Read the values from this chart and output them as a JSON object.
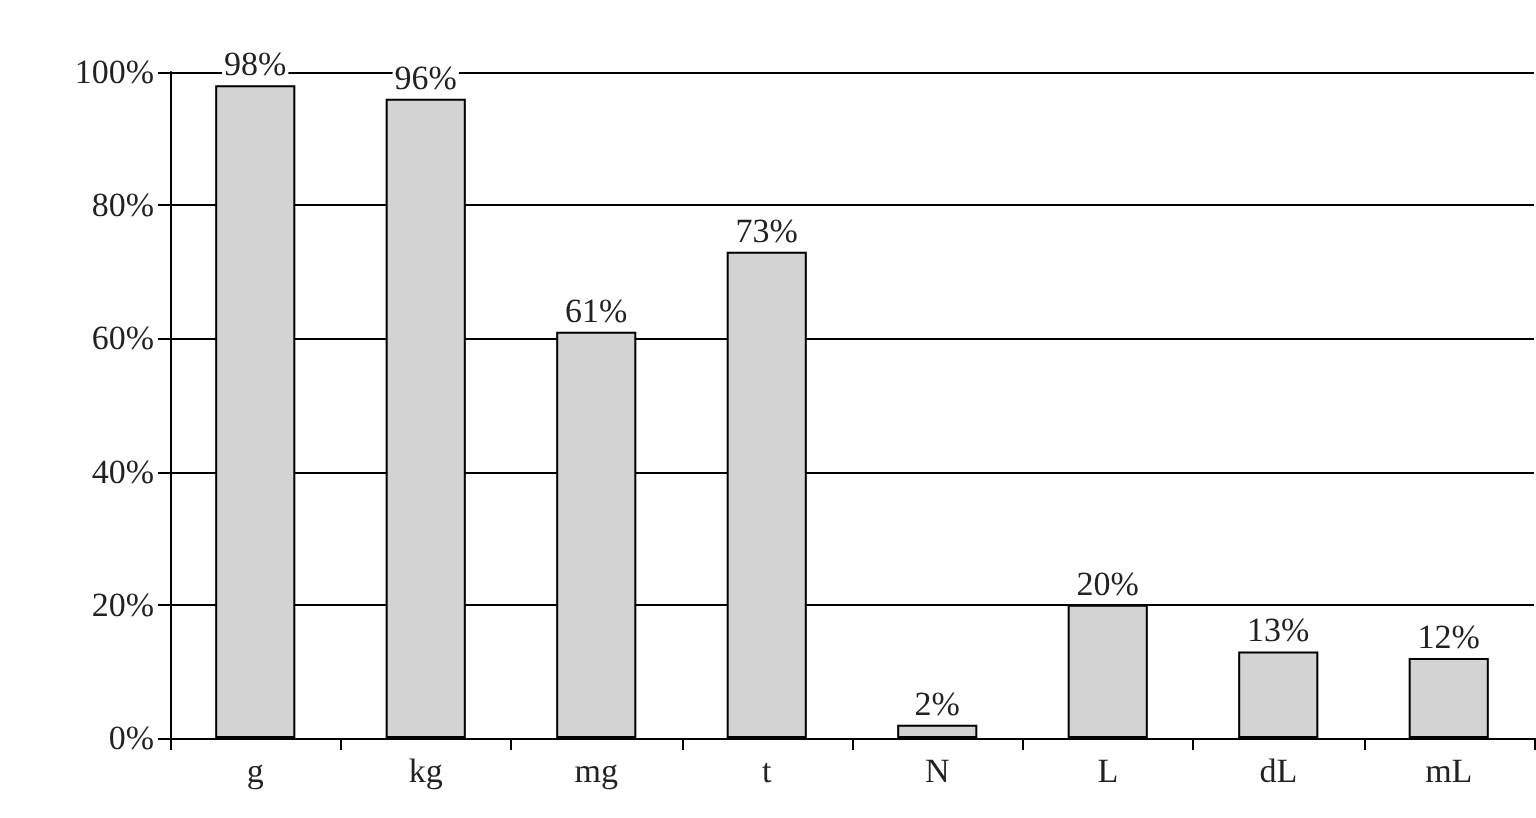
{
  "chart_data": {
    "type": "bar",
    "categories": [
      "g",
      "kg",
      "mg",
      "t",
      "N",
      "L",
      "dL",
      "mL"
    ],
    "values": [
      98,
      96,
      61,
      73,
      2,
      20,
      13,
      12
    ],
    "value_labels": [
      "98%",
      "96%",
      "61%",
      "73%",
      "2%",
      "20%",
      "13%",
      "12%"
    ],
    "color": "#d3d3d3",
    "ylim": [
      0,
      100
    ],
    "yticks": [
      {
        "value": 0,
        "label": "0%"
      },
      {
        "value": 20,
        "label": "20%"
      },
      {
        "value": 40,
        "label": "40%"
      },
      {
        "value": 60,
        "label": "60%"
      },
      {
        "value": 80,
        "label": "80%"
      },
      {
        "value": 100,
        "label": "100%"
      }
    ],
    "grid": "y"
  }
}
